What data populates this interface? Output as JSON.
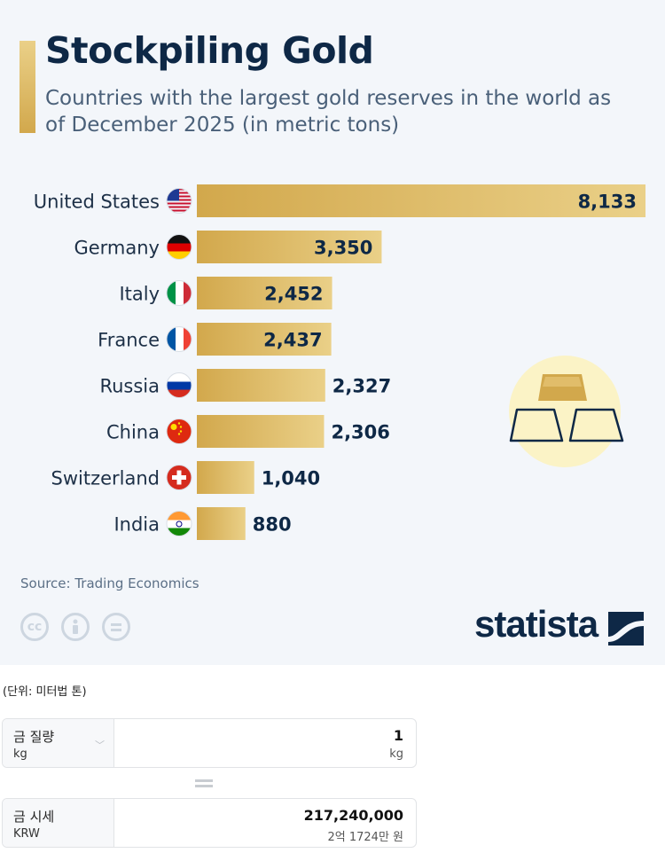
{
  "title": "Stockpiling Gold",
  "subtitle": "Countries with the largest gold reserves in the world as of December 2025 (in metric tons)",
  "source": "Source: Trading Economics",
  "brand": "statista",
  "license_icons": [
    "cc-icon",
    "attribution-icon",
    "no-derivatives-icon"
  ],
  "colors": {
    "bar_light": "#ead088",
    "bar_dark": "#d2a84c",
    "text_dark": "#0e2846",
    "background": "#f3f6fa",
    "illustration_circle": "#fbf3c6"
  },
  "chart_data": {
    "type": "bar",
    "orientation": "horizontal",
    "title": "Stockpiling Gold",
    "subtitle": "Countries with the largest gold reserves in the world as of December 2025 (in metric tons)",
    "categories": [
      "United States",
      "Germany",
      "Italy",
      "France",
      "Russia",
      "China",
      "Switzerland",
      "India"
    ],
    "values": [
      8133,
      3350,
      2452,
      2437,
      2327,
      2306,
      1040,
      880
    ],
    "value_labels": [
      "8,133",
      "3,350",
      "2,452",
      "2,437",
      "2,327",
      "2,306",
      "1,040",
      "880"
    ],
    "flags": [
      "us-flag-icon",
      "germany-flag-icon",
      "italy-flag-icon",
      "france-flag-icon",
      "russia-flag-icon",
      "china-flag-icon",
      "switzerland-flag-icon",
      "india-flag-icon"
    ],
    "xlim": [
      0,
      8133
    ],
    "grid": false,
    "legend": "none"
  },
  "converter": {
    "unit_note": "(단위: 미터법 톤)",
    "weight": {
      "label": "금 질량",
      "unit": "kg",
      "value": "1",
      "value_unit": "kg"
    },
    "price": {
      "label": "금 시세",
      "unit": "KRW",
      "value": "217,240,000",
      "value_words": "2억 1724만 원"
    }
  }
}
